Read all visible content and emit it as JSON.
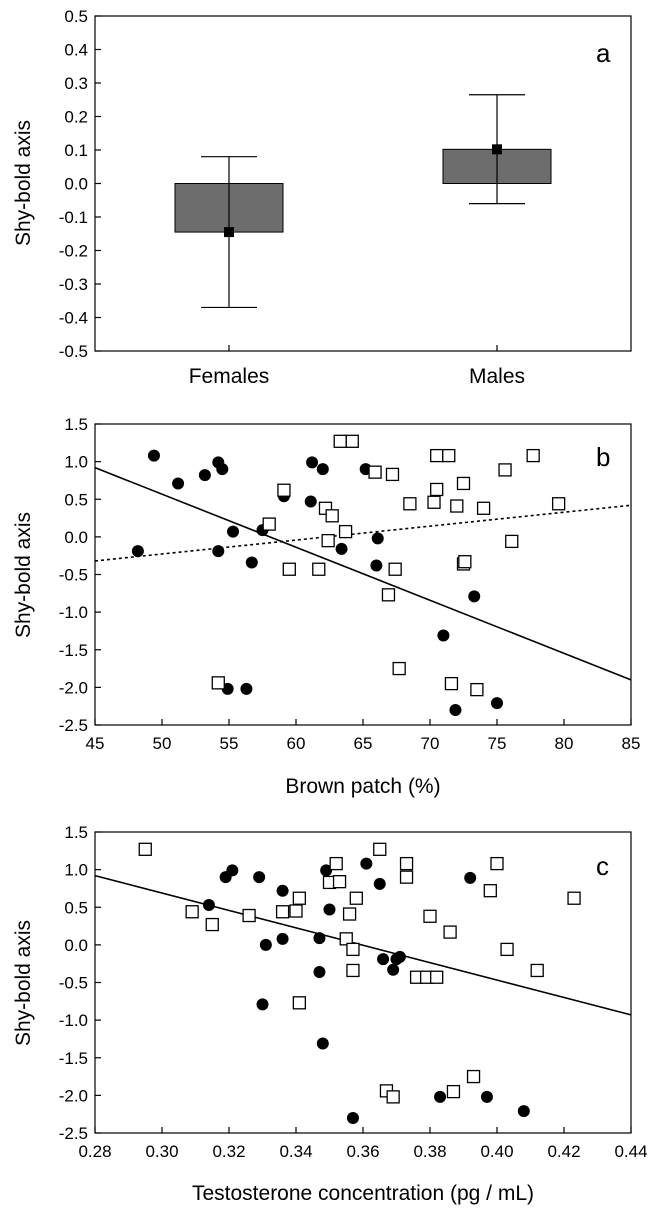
{
  "chart_data": [
    {
      "type": "bar",
      "panel_label": "a",
      "ylabel": "Shy-bold axis",
      "categories": [
        "Females",
        "Males"
      ],
      "values": [
        -0.145,
        0.102
      ],
      "error_low": [
        -0.37,
        -0.06
      ],
      "error_high": [
        0.08,
        0.265
      ],
      "ylim": [
        -0.5,
        0.5
      ],
      "yticks": [
        -0.5,
        -0.4,
        -0.3,
        -0.2,
        -0.1,
        0.0,
        0.1,
        0.2,
        0.3,
        0.4,
        0.5
      ],
      "ytick_labels": [
        "-0.5",
        "-0.4",
        "-0.3",
        "-0.2",
        "-0.1",
        "0.0",
        "0.1",
        "0.2",
        "0.3",
        "0.4",
        "0.5"
      ],
      "bar_color": "#6d6d6d"
    },
    {
      "type": "scatter",
      "panel_label": "b",
      "xlabel": "Brown patch (%)",
      "ylabel": "Shy-bold axis",
      "xlim": [
        45,
        85
      ],
      "ylim": [
        -2.5,
        1.5
      ],
      "xticks": [
        45,
        50,
        55,
        60,
        65,
        70,
        75,
        80,
        85
      ],
      "xtick_labels": [
        "45",
        "50",
        "55",
        "60",
        "65",
        "70",
        "75",
        "80",
        "85"
      ],
      "yticks": [
        -2.5,
        -2.0,
        -1.5,
        -1.0,
        -0.5,
        0.0,
        0.5,
        1.0,
        1.5
      ],
      "ytick_labels": [
        "-2.5",
        "-2.0",
        "-1.5",
        "-1.0",
        "-0.5",
        "0.0",
        "0.5",
        "1.0",
        "1.5"
      ],
      "series": [
        {
          "marker": "filled-circle",
          "points": [
            [
              48.2,
              -0.19
            ],
            [
              49.4,
              1.08
            ],
            [
              51.2,
              0.71
            ],
            [
              53.2,
              0.82
            ],
            [
              54.2,
              0.99
            ],
            [
              54.5,
              0.9
            ],
            [
              54.2,
              -0.19
            ],
            [
              55.3,
              0.07
            ],
            [
              54.9,
              -2.02
            ],
            [
              56.7,
              -0.34
            ],
            [
              57.5,
              0.09
            ],
            [
              56.3,
              -2.02
            ],
            [
              59.1,
              0.54
            ],
            [
              61.1,
              0.47
            ],
            [
              61.2,
              0.99
            ],
            [
              62.0,
              0.9
            ],
            [
              63.4,
              -0.16
            ],
            [
              65.2,
              0.9
            ],
            [
              66.0,
              -0.38
            ],
            [
              66.1,
              -0.02
            ],
            [
              71.0,
              -1.31
            ],
            [
              73.3,
              -0.79
            ],
            [
              71.9,
              -2.3
            ],
            [
              75.0,
              -2.21
            ]
          ],
          "fit_line": {
            "style": "solid",
            "x": [
              45,
              85
            ],
            "y": [
              0.92,
              -1.9
            ]
          }
        },
        {
          "marker": "open-square",
          "points": [
            [
              54.2,
              -1.94
            ],
            [
              59.1,
              0.62
            ],
            [
              59.5,
              -0.43
            ],
            [
              58.0,
              0.17
            ],
            [
              61.7,
              -0.43
            ],
            [
              62.2,
              0.38
            ],
            [
              62.4,
              -0.05
            ],
            [
              62.7,
              0.28
            ],
            [
              63.3,
              1.27
            ],
            [
              63.7,
              0.07
            ],
            [
              64.2,
              1.27
            ],
            [
              65.9,
              0.86
            ],
            [
              66.9,
              -0.77
            ],
            [
              67.4,
              -0.43
            ],
            [
              67.2,
              0.83
            ],
            [
              67.7,
              -1.75
            ],
            [
              68.5,
              0.44
            ],
            [
              70.3,
              0.46
            ],
            [
              70.5,
              0.63
            ],
            [
              70.5,
              1.08
            ],
            [
              71.4,
              1.08
            ],
            [
              71.6,
              -1.95
            ],
            [
              72.0,
              0.41
            ],
            [
              72.5,
              -0.36
            ],
            [
              72.5,
              0.71
            ],
            [
              72.6,
              -0.33
            ],
            [
              73.5,
              -2.03
            ],
            [
              74.0,
              0.38
            ],
            [
              75.6,
              0.89
            ],
            [
              76.1,
              -0.06
            ],
            [
              77.7,
              1.08
            ],
            [
              79.6,
              0.44
            ]
          ],
          "fit_line": {
            "style": "dotted",
            "x": [
              45,
              85
            ],
            "y": [
              -0.32,
              0.42
            ]
          }
        }
      ]
    },
    {
      "type": "scatter",
      "panel_label": "c",
      "xlabel": "Testosterone concentration (pg / mL)",
      "ylabel": "Shy-bold axis",
      "xlim": [
        0.28,
        0.44
      ],
      "ylim": [
        -2.5,
        1.5
      ],
      "xticks": [
        0.28,
        0.3,
        0.32,
        0.34,
        0.36,
        0.38,
        0.4,
        0.42,
        0.44
      ],
      "xtick_labels": [
        "0.28",
        "0.30",
        "0.32",
        "0.34",
        "0.36",
        "0.38",
        "0.40",
        "0.42",
        "0.44"
      ],
      "yticks": [
        -2.5,
        -2.0,
        -1.5,
        -1.0,
        -0.5,
        0.0,
        0.5,
        1.0,
        1.5
      ],
      "ytick_labels": [
        "-2.5",
        "-2.0",
        "-1.5",
        "-1.0",
        "-0.5",
        "0.0",
        "0.5",
        "1.0",
        "1.5"
      ],
      "series": [
        {
          "marker": "filled-circle",
          "points": [
            [
              0.314,
              0.53
            ],
            [
              0.319,
              0.9
            ],
            [
              0.321,
              0.99
            ],
            [
              0.329,
              0.9
            ],
            [
              0.33,
              -0.79
            ],
            [
              0.331,
              0.0
            ],
            [
              0.336,
              0.72
            ],
            [
              0.336,
              0.08
            ],
            [
              0.347,
              0.09
            ],
            [
              0.347,
              -0.36
            ],
            [
              0.348,
              -1.31
            ],
            [
              0.349,
              0.99
            ],
            [
              0.35,
              0.47
            ],
            [
              0.357,
              -2.3
            ],
            [
              0.361,
              1.08
            ],
            [
              0.365,
              0.81
            ],
            [
              0.366,
              -0.19
            ],
            [
              0.37,
              -0.19
            ],
            [
              0.369,
              -0.33
            ],
            [
              0.371,
              -0.16
            ],
            [
              0.383,
              -2.02
            ],
            [
              0.392,
              0.89
            ],
            [
              0.397,
              -2.02
            ],
            [
              0.408,
              -2.21
            ]
          ]
        },
        {
          "marker": "open-square",
          "points": [
            [
              0.295,
              1.27
            ],
            [
              0.309,
              0.44
            ],
            [
              0.315,
              0.27
            ],
            [
              0.326,
              0.39
            ],
            [
              0.336,
              0.44
            ],
            [
              0.34,
              0.45
            ],
            [
              0.341,
              -0.77
            ],
            [
              0.341,
              0.62
            ],
            [
              0.35,
              0.83
            ],
            [
              0.352,
              1.08
            ],
            [
              0.353,
              0.84
            ],
            [
              0.355,
              0.08
            ],
            [
              0.356,
              0.41
            ],
            [
              0.357,
              -0.06
            ],
            [
              0.357,
              -0.34
            ],
            [
              0.358,
              0.62
            ],
            [
              0.365,
              1.27
            ],
            [
              0.367,
              -1.94
            ],
            [
              0.369,
              -2.02
            ],
            [
              0.373,
              1.08
            ],
            [
              0.373,
              0.9
            ],
            [
              0.376,
              -0.43
            ],
            [
              0.379,
              -0.43
            ],
            [
              0.38,
              0.38
            ],
            [
              0.382,
              -0.43
            ],
            [
              0.386,
              0.17
            ],
            [
              0.387,
              -1.95
            ],
            [
              0.393,
              -1.75
            ],
            [
              0.398,
              0.72
            ],
            [
              0.4,
              1.08
            ],
            [
              0.403,
              -0.06
            ],
            [
              0.412,
              -0.34
            ],
            [
              0.423,
              0.62
            ]
          ]
        }
      ],
      "fit_line": {
        "style": "solid",
        "x": [
          0.28,
          0.44
        ],
        "y": [
          0.92,
          -0.93
        ]
      }
    }
  ]
}
